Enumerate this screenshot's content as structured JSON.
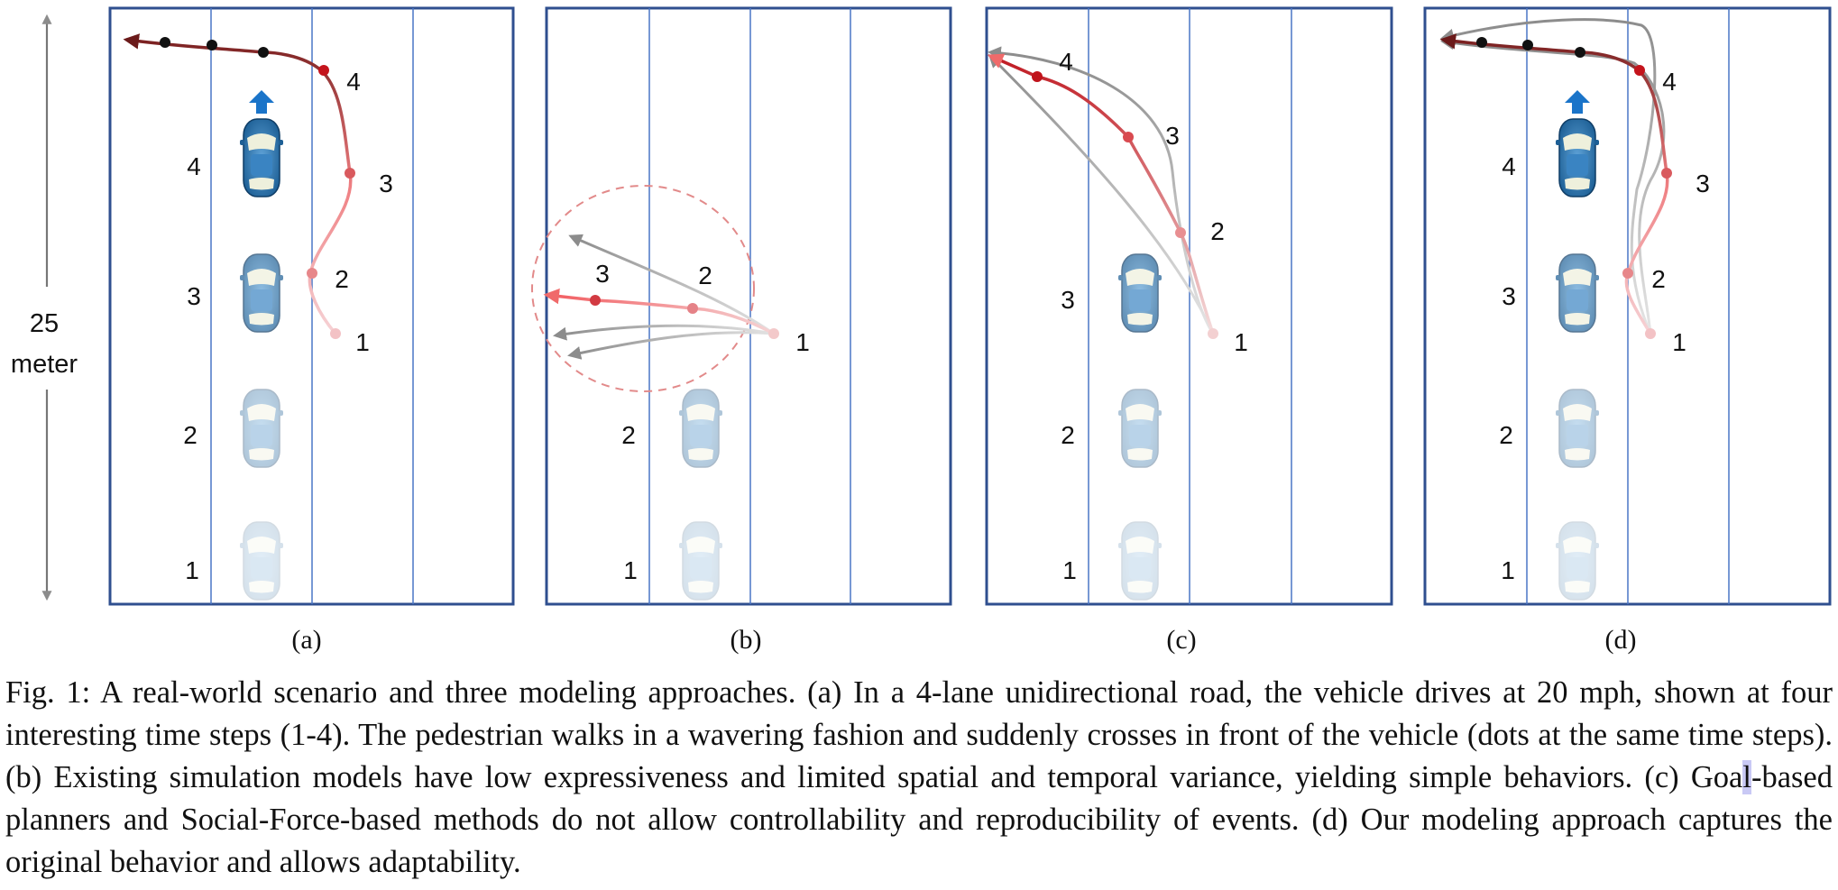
{
  "figure": {
    "scale_value": "25",
    "scale_unit": "meter",
    "panels": [
      {
        "label": "(a)",
        "car_step_labels": [
          "4",
          "3",
          "2",
          "1"
        ],
        "ped_step_labels": [
          "1",
          "2",
          "3",
          "4"
        ],
        "has_direction_arrow": true
      },
      {
        "label": "(b)",
        "car_step_labels": [
          "2",
          "1"
        ],
        "ped_step_labels": [
          "1",
          "2",
          "3"
        ],
        "has_direction_arrow": false
      },
      {
        "label": "(c)",
        "car_step_labels": [
          "3",
          "2",
          "1"
        ],
        "ped_step_labels": [
          "1",
          "2",
          "3",
          "4"
        ],
        "has_direction_arrow": false
      },
      {
        "label": "(d)",
        "car_step_labels": [
          "4",
          "3",
          "2",
          "1"
        ],
        "ped_step_labels": [
          "1",
          "2",
          "3",
          "4"
        ],
        "has_direction_arrow": true
      }
    ],
    "colors": {
      "road_border": "#2f4f8f",
      "lane_line": "#4a76c6",
      "trajectory_red": "#d0262b",
      "trajectory_gray": "#8c8c8c",
      "direction_arrow": "#1a74c9"
    }
  },
  "caption": {
    "p1": "Fig. 1: A real-world scenario and three modeling approaches. (a) In a 4-lane unidirectional road, the vehicle drives at 20 mph, shown at four interesting time steps (1-4). The pedestrian walks in a wavering fashion and suddenly crosses in front of the vehicle (dots at the same time steps). (b) Existing simulation models have low expressiveness and limited spatial and temporal variance, yielding simple behaviors. (c) Goa",
    "p2": "l",
    "p3": "-based planners and Social-Force-based methods do not allow controllability and reproducibility of events. (d) Our modeling approach captures the original behavior and allows adaptability."
  }
}
